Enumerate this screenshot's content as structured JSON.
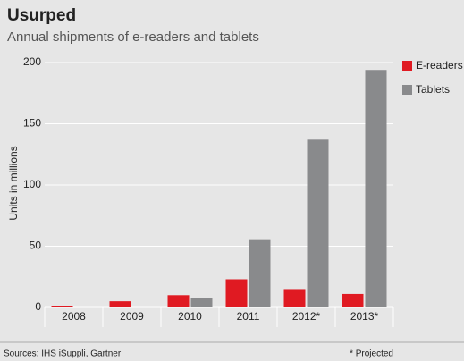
{
  "chart_data": {
    "type": "bar",
    "title": "Usurped",
    "subtitle": "Annual shipments of e-readers and tablets",
    "y_label": "Units in millions",
    "categories": [
      "2008",
      "2009",
      "2010",
      "2011",
      "2012*",
      "2013*"
    ],
    "series": [
      {
        "name": "E-readers",
        "color": "#e01a22",
        "values": [
          1,
          5,
          10,
          23,
          15,
          11
        ]
      },
      {
        "name": "Tablets",
        "color": "#898a8c",
        "values": [
          0,
          0,
          8,
          55,
          137,
          194
        ]
      }
    ],
    "ylim": [
      0,
      200
    ],
    "yticks": [
      0,
      50,
      100,
      150,
      200
    ],
    "grid": true,
    "legend": "right",
    "source": "Sources: IHS iSuppli, Gartner",
    "note": "* Projected"
  }
}
